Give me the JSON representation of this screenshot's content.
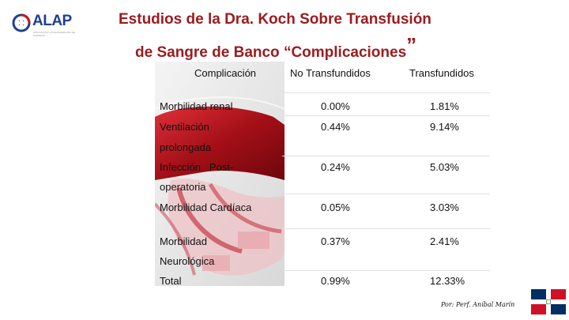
{
  "logo": {
    "text": "ALAP",
    "tagline": "ASOCIACIÓN LATINOAMERICANA DE AFÉRESIS"
  },
  "title": {
    "line1": "Estudios de la Dra. Koch Sobre Transfusión",
    "line2": "de Sangre de Banco  “Complicaciones",
    "closing_quote": "”"
  },
  "table": {
    "headers": [
      "Complicación",
      "No Transfundidos",
      "Transfundidos"
    ],
    "rows": [
      {
        "label_lines": [
          "Morbilidad renal"
        ],
        "no_transfundidos": "0.00%",
        "transfundidos": "1.81%"
      },
      {
        "label_lines": [
          "Ventilación",
          "prolongada"
        ],
        "no_transfundidos": "0.44%",
        "transfundidos": "9.14%"
      },
      {
        "label_lines": [
          "Infección   Post-",
          "operatoria"
        ],
        "no_transfundidos": "0.24%",
        "transfundidos": "5.03%"
      },
      {
        "label_lines": [
          "Morbilidad Cardíaca"
        ],
        "no_transfundidos": "0.05%",
        "transfundidos": "3.03%"
      },
      {
        "label_lines": [
          "Morbilidad",
          "Neurológica"
        ],
        "no_transfundidos": "0.37%",
        "transfundidos": "2.41%"
      },
      {
        "label_lines": [
          "Total"
        ],
        "no_transfundidos": "0.99%",
        "transfundidos": "12.33%"
      }
    ]
  },
  "author": "Por: Perf. Aníbal Marín",
  "colors": {
    "title": "#9b1c20",
    "logo": "#1f3f8f",
    "blood": "#b0141c"
  }
}
